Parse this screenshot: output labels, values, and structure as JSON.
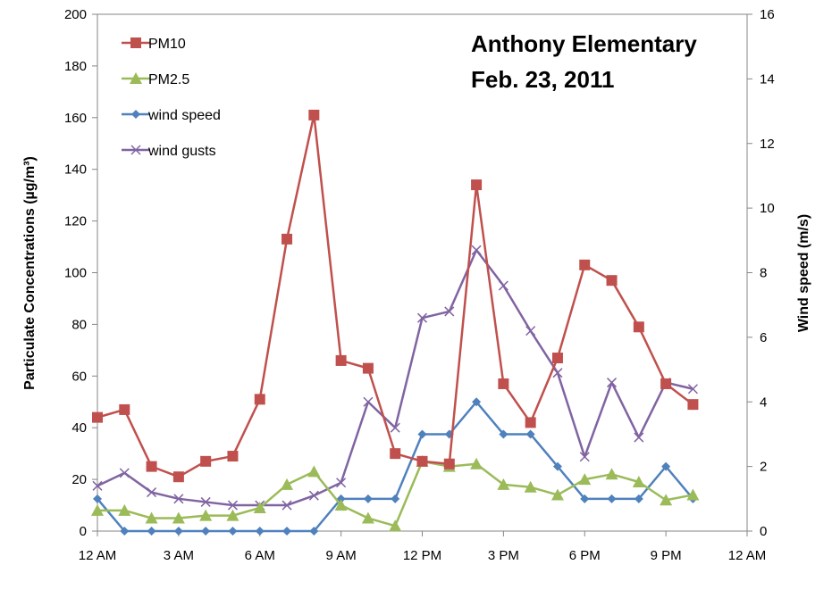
{
  "chart_data": {
    "type": "line",
    "title": "Anthony Elementary",
    "subtitle": "Feb. 23, 2011",
    "ylabel": "Particulate Concentrations (µg/m³)",
    "ylabel2": "Wind speed (m/s)",
    "xlabel": "",
    "x_tick_labels": [
      "12 AM",
      "3 AM",
      "6 AM",
      "9 AM",
      "12 PM",
      "3 PM",
      "6 PM",
      "9 PM",
      "12 AM"
    ],
    "x_hours": [
      0,
      1,
      2,
      3,
      4,
      5,
      6,
      7,
      8,
      9,
      10,
      11,
      12,
      13,
      14,
      15,
      16,
      17,
      18,
      19,
      20,
      21,
      22
    ],
    "xlim": [
      0,
      24
    ],
    "ylim": [
      0,
      200
    ],
    "y_ticks": [
      0,
      20,
      40,
      60,
      80,
      100,
      120,
      140,
      160,
      180,
      200
    ],
    "y2lim": [
      0,
      16
    ],
    "y2_ticks": [
      0,
      2,
      4,
      6,
      8,
      10,
      12,
      14,
      16
    ],
    "grid": false,
    "legend_position": "top-left",
    "series": [
      {
        "name": "PM10",
        "axis": "left",
        "color": "#C0504D",
        "marker": "square",
        "values": [
          44,
          47,
          25,
          21,
          27,
          29,
          51,
          113,
          161,
          66,
          63,
          30,
          27,
          26,
          134,
          57,
          42,
          67,
          103,
          97,
          79,
          57,
          49
        ]
      },
      {
        "name": "PM2.5",
        "axis": "left",
        "color": "#9BBB59",
        "marker": "triangle",
        "values": [
          8,
          8,
          5,
          5,
          6,
          6,
          9,
          18,
          23,
          10,
          5,
          2,
          27,
          25,
          26,
          18,
          17,
          14,
          20,
          22,
          19,
          12,
          14
        ]
      },
      {
        "name": "wind speed",
        "axis": "right",
        "color": "#4F81BD",
        "marker": "diamond",
        "values": [
          1,
          0,
          0,
          0,
          0,
          0,
          0,
          0,
          0,
          1,
          1,
          1,
          3,
          3,
          4,
          3,
          3,
          2,
          1,
          1,
          1,
          2,
          1
        ]
      },
      {
        "name": "wind gusts",
        "axis": "right",
        "color": "#8064A2",
        "marker": "x",
        "values": [
          1.4,
          1.8,
          1.2,
          1.0,
          0.9,
          0.8,
          0.8,
          0.8,
          1.1,
          1.5,
          4.0,
          3.2,
          6.6,
          6.8,
          8.7,
          7.6,
          6.2,
          4.9,
          2.3,
          4.6,
          2.9,
          4.6,
          4.4
        ]
      }
    ]
  }
}
